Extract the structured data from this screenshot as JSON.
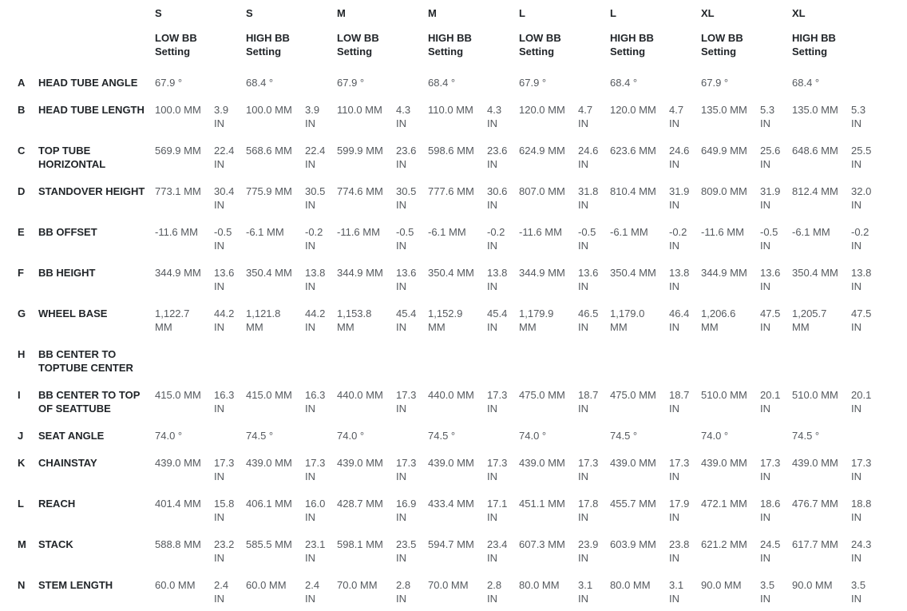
{
  "table": {
    "columns": [
      {
        "size": "S",
        "bb": "LOW BB",
        "setting": "Setting"
      },
      {
        "size": "S",
        "bb": "HIGH BB",
        "setting": "Setting"
      },
      {
        "size": "M",
        "bb": "LOW BB",
        "setting": "Setting"
      },
      {
        "size": "M",
        "bb": "HIGH BB",
        "setting": "Setting"
      },
      {
        "size": "L",
        "bb": "LOW BB",
        "setting": "Setting"
      },
      {
        "size": "L",
        "bb": "HIGH BB",
        "setting": "Setting"
      },
      {
        "size": "XL",
        "bb": "LOW BB",
        "setting": "Setting"
      },
      {
        "size": "XL",
        "bb": "HIGH BB",
        "setting": "Setting"
      }
    ],
    "rows": [
      {
        "letter": "A",
        "label": "HEAD TUBE ANGLE",
        "type": "angle",
        "values": [
          "67.9 °",
          "68.4 °",
          "67.9 °",
          "68.4 °",
          "67.9 °",
          "68.4 °",
          "67.9 °",
          "68.4 °"
        ]
      },
      {
        "letter": "B",
        "label": "HEAD TUBE LENGTH",
        "type": "mm_in",
        "values": [
          {
            "mm": "100.0 MM",
            "in": "3.9 IN"
          },
          {
            "mm": "100.0 MM",
            "in": "3.9 IN"
          },
          {
            "mm": "110.0 MM",
            "in": "4.3 IN"
          },
          {
            "mm": "110.0 MM",
            "in": "4.3 IN"
          },
          {
            "mm": "120.0 MM",
            "in": "4.7 IN"
          },
          {
            "mm": "120.0 MM",
            "in": "4.7 IN"
          },
          {
            "mm": "135.0 MM",
            "in": "5.3 IN"
          },
          {
            "mm": "135.0 MM",
            "in": "5.3 IN"
          }
        ]
      },
      {
        "letter": "C",
        "label": "TOP TUBE HORIZONTAL",
        "type": "mm_in",
        "values": [
          {
            "mm": "569.9 MM",
            "in": "22.4 IN"
          },
          {
            "mm": "568.6 MM",
            "in": "22.4 IN"
          },
          {
            "mm": "599.9 MM",
            "in": "23.6 IN"
          },
          {
            "mm": "598.6 MM",
            "in": "23.6 IN"
          },
          {
            "mm": "624.9 MM",
            "in": "24.6 IN"
          },
          {
            "mm": "623.6 MM",
            "in": "24.6 IN"
          },
          {
            "mm": "649.9 MM",
            "in": "25.6 IN"
          },
          {
            "mm": "648.6 MM",
            "in": "25.5 IN"
          }
        ]
      },
      {
        "letter": "D",
        "label": "STANDOVER HEIGHT",
        "type": "mm_in",
        "values": [
          {
            "mm": "773.1 MM",
            "in": "30.4 IN"
          },
          {
            "mm": "775.9 MM",
            "in": "30.5 IN"
          },
          {
            "mm": "774.6 MM",
            "in": "30.5 IN"
          },
          {
            "mm": "777.6 MM",
            "in": "30.6 IN"
          },
          {
            "mm": "807.0 MM",
            "in": "31.8 IN"
          },
          {
            "mm": "810.4 MM",
            "in": "31.9 IN"
          },
          {
            "mm": "809.0 MM",
            "in": "31.9 IN"
          },
          {
            "mm": "812.4 MM",
            "in": "32.0 IN"
          }
        ]
      },
      {
        "letter": "E",
        "label": "BB OFFSET",
        "type": "mm_in",
        "values": [
          {
            "mm": "-11.6 MM",
            "in": "-0.5 IN"
          },
          {
            "mm": "-6.1 MM",
            "in": "-0.2 IN"
          },
          {
            "mm": "-11.6 MM",
            "in": "-0.5 IN"
          },
          {
            "mm": "-6.1 MM",
            "in": "-0.2 IN"
          },
          {
            "mm": "-11.6 MM",
            "in": "-0.5 IN"
          },
          {
            "mm": "-6.1 MM",
            "in": "-0.2 IN"
          },
          {
            "mm": "-11.6 MM",
            "in": "-0.5 IN"
          },
          {
            "mm": "-6.1 MM",
            "in": "-0.2 IN"
          }
        ]
      },
      {
        "letter": "F",
        "label": "BB HEIGHT",
        "type": "mm_in",
        "values": [
          {
            "mm": "344.9 MM",
            "in": "13.6 IN"
          },
          {
            "mm": "350.4 MM",
            "in": "13.8 IN"
          },
          {
            "mm": "344.9 MM",
            "in": "13.6 IN"
          },
          {
            "mm": "350.4 MM",
            "in": "13.8 IN"
          },
          {
            "mm": "344.9 MM",
            "in": "13.6 IN"
          },
          {
            "mm": "350.4 MM",
            "in": "13.8 IN"
          },
          {
            "mm": "344.9 MM",
            "in": "13.6 IN"
          },
          {
            "mm": "350.4 MM",
            "in": "13.8 IN"
          }
        ]
      },
      {
        "letter": "G",
        "label": "WHEEL BASE",
        "type": "mm_in",
        "values": [
          {
            "mm": "1,122.7 MM",
            "in": "44.2 IN"
          },
          {
            "mm": "1,121.8 MM",
            "in": "44.2 IN"
          },
          {
            "mm": "1,153.8 MM",
            "in": "45.4 IN"
          },
          {
            "mm": "1,152.9 MM",
            "in": "45.4 IN"
          },
          {
            "mm": "1,179.9 MM",
            "in": "46.5 IN"
          },
          {
            "mm": "1,179.0 MM",
            "in": "46.4 IN"
          },
          {
            "mm": "1,206.6 MM",
            "in": "47.5 IN"
          },
          {
            "mm": "1,205.7 MM",
            "in": "47.5 IN"
          }
        ]
      },
      {
        "letter": "H",
        "label": "BB CENTER TO TOPTUBE CENTER",
        "type": "empty",
        "values": []
      },
      {
        "letter": "I",
        "label": "BB CENTER TO TOP OF SEATTUBE",
        "type": "mm_in",
        "values": [
          {
            "mm": "415.0 MM",
            "in": "16.3 IN"
          },
          {
            "mm": "415.0 MM",
            "in": "16.3 IN"
          },
          {
            "mm": "440.0 MM",
            "in": "17.3 IN"
          },
          {
            "mm": "440.0 MM",
            "in": "17.3 IN"
          },
          {
            "mm": "475.0 MM",
            "in": "18.7 IN"
          },
          {
            "mm": "475.0 MM",
            "in": "18.7 IN"
          },
          {
            "mm": "510.0 MM",
            "in": "20.1 IN"
          },
          {
            "mm": "510.0 MM",
            "in": "20.1 IN"
          }
        ]
      },
      {
        "letter": "J",
        "label": "SEAT ANGLE",
        "type": "angle",
        "values": [
          "74.0 °",
          "74.5 °",
          "74.0 °",
          "74.5 °",
          "74.0 °",
          "74.5 °",
          "74.0 °",
          "74.5 °"
        ]
      },
      {
        "letter": "K",
        "label": "CHAINSTAY",
        "type": "mm_in",
        "values": [
          {
            "mm": "439.0 MM",
            "in": "17.3 IN"
          },
          {
            "mm": "439.0 MM",
            "in": "17.3 IN"
          },
          {
            "mm": "439.0 MM",
            "in": "17.3 IN"
          },
          {
            "mm": "439.0 MM",
            "in": "17.3 IN"
          },
          {
            "mm": "439.0 MM",
            "in": "17.3 IN"
          },
          {
            "mm": "439.0 MM",
            "in": "17.3 IN"
          },
          {
            "mm": "439.0 MM",
            "in": "17.3 IN"
          },
          {
            "mm": "439.0 MM",
            "in": "17.3 IN"
          }
        ]
      },
      {
        "letter": "L",
        "label": "REACH",
        "type": "mm_in",
        "values": [
          {
            "mm": "401.4 MM",
            "in": "15.8 IN"
          },
          {
            "mm": "406.1 MM",
            "in": "16.0 IN"
          },
          {
            "mm": "428.7 MM",
            "in": "16.9 IN"
          },
          {
            "mm": "433.4 MM",
            "in": "17.1 IN"
          },
          {
            "mm": "451.1 MM",
            "in": "17.8 IN"
          },
          {
            "mm": "455.7 MM",
            "in": "17.9 IN"
          },
          {
            "mm": "472.1 MM",
            "in": "18.6 IN"
          },
          {
            "mm": "476.7 MM",
            "in": "18.8 IN"
          }
        ]
      },
      {
        "letter": "M",
        "label": "STACK",
        "type": "mm_in",
        "values": [
          {
            "mm": "588.8 MM",
            "in": "23.2 IN"
          },
          {
            "mm": "585.5 MM",
            "in": "23.1 IN"
          },
          {
            "mm": "598.1 MM",
            "in": "23.5 IN"
          },
          {
            "mm": "594.7 MM",
            "in": "23.4 IN"
          },
          {
            "mm": "607.3 MM",
            "in": "23.9 IN"
          },
          {
            "mm": "603.9 MM",
            "in": "23.8 IN"
          },
          {
            "mm": "621.2 MM",
            "in": "24.5 IN"
          },
          {
            "mm": "617.7 MM",
            "in": "24.3 IN"
          }
        ]
      },
      {
        "letter": "N",
        "label": "STEM LENGTH",
        "type": "mm_in",
        "values": [
          {
            "mm": "60.0 MM",
            "in": "2.4 IN"
          },
          {
            "mm": "60.0 MM",
            "in": "2.4 IN"
          },
          {
            "mm": "70.0 MM",
            "in": "2.8 IN"
          },
          {
            "mm": "70.0 MM",
            "in": "2.8 IN"
          },
          {
            "mm": "80.0 MM",
            "in": "3.1 IN"
          },
          {
            "mm": "80.0 MM",
            "in": "3.1 IN"
          },
          {
            "mm": "90.0 MM",
            "in": "3.5 IN"
          },
          {
            "mm": "90.0 MM",
            "in": "3.5 IN"
          }
        ]
      }
    ],
    "colors": {
      "label_text": "#212529",
      "value_text": "#55595e",
      "background": "#ffffff"
    }
  }
}
